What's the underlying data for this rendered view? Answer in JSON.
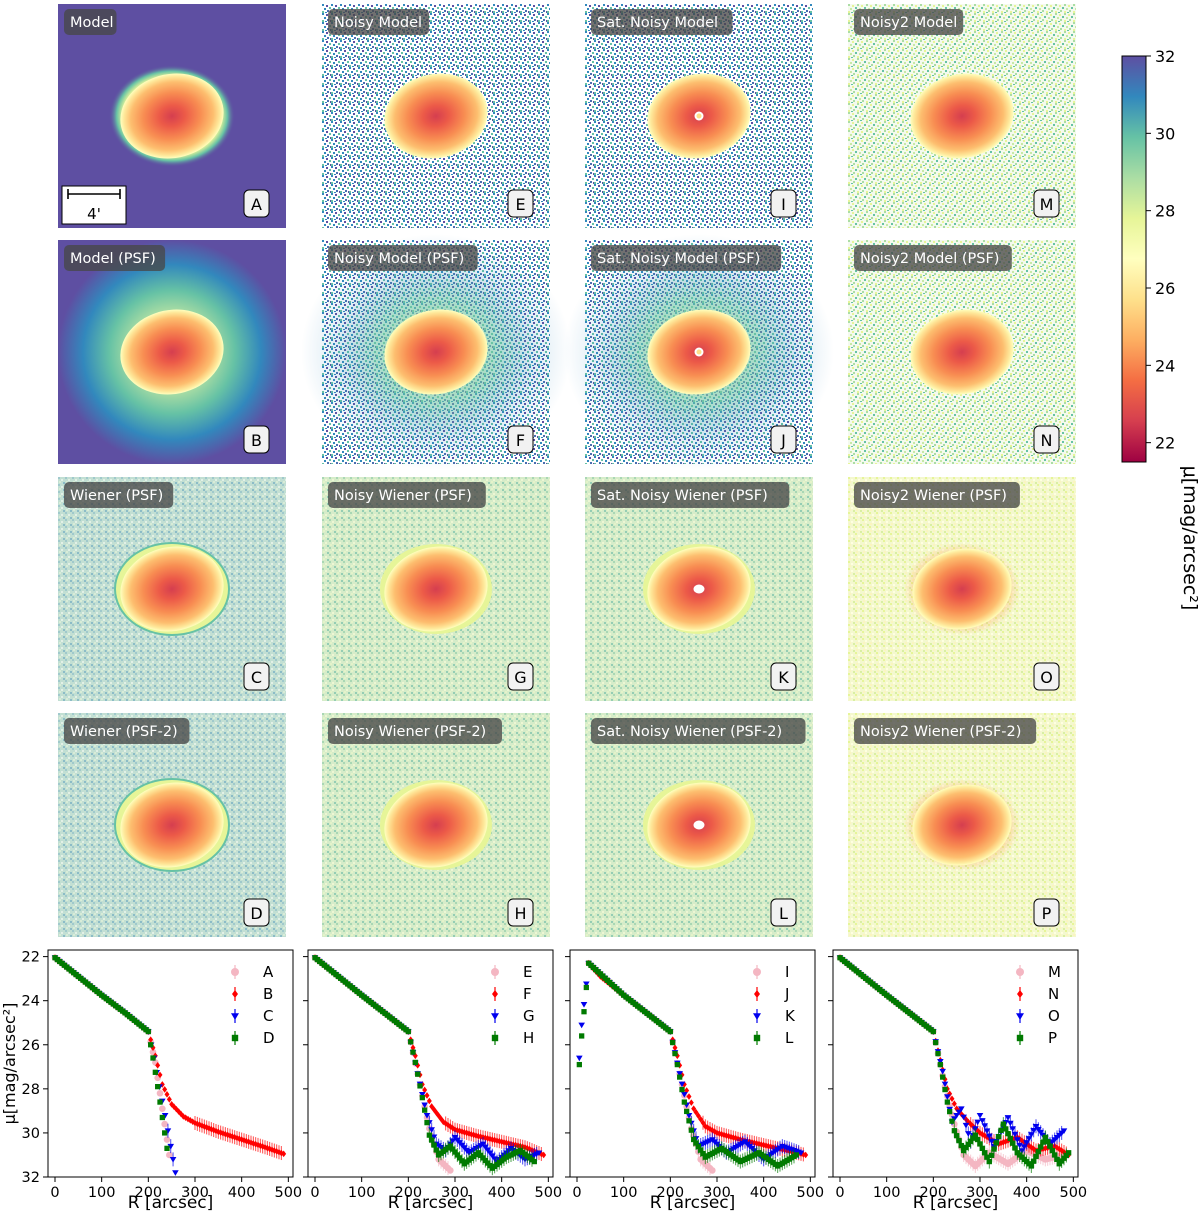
{
  "figure": {
    "scale_bar_label": "4'",
    "colorbar": {
      "label": "μ[mag/arcsec²]",
      "ticks": [
        "22",
        "24",
        "26",
        "28",
        "30",
        "32"
      ],
      "range": [
        21.5,
        32
      ],
      "colormap": "Spectral"
    }
  },
  "panels": [
    {
      "title": "Model",
      "letter": "A",
      "style": "model",
      "psf": false
    },
    {
      "title": "Noisy Model",
      "letter": "E",
      "style": "noisy",
      "psf": false
    },
    {
      "title": "Sat. Noisy Model",
      "letter": "I",
      "style": "satnoisy",
      "psf": false
    },
    {
      "title": "Noisy2 Model",
      "letter": "M",
      "style": "noisy2",
      "psf": false
    },
    {
      "title": "Model (PSF)",
      "letter": "B",
      "style": "modelpsf",
      "psf": true
    },
    {
      "title": "Noisy Model (PSF)",
      "letter": "F",
      "style": "noisy",
      "psf": true
    },
    {
      "title": "Sat. Noisy Model (PSF)",
      "letter": "J",
      "style": "satnoisy",
      "psf": true
    },
    {
      "title": "Noisy2 Model (PSF)",
      "letter": "N",
      "style": "noisy2",
      "psf": true
    },
    {
      "title": "Wiener (PSF)",
      "letter": "C",
      "style": "wiener",
      "psf": false
    },
    {
      "title": "Noisy Wiener (PSF)",
      "letter": "G",
      "style": "noisywiener",
      "psf": false
    },
    {
      "title": "Sat. Noisy Wiener (PSF)",
      "letter": "K",
      "style": "satwiener",
      "psf": false
    },
    {
      "title": "Noisy2 Wiener (PSF)",
      "letter": "O",
      "style": "noisy2wiener",
      "psf": false
    },
    {
      "title": "Wiener (PSF-2)",
      "letter": "D",
      "style": "wiener2",
      "psf": false
    },
    {
      "title": "Noisy Wiener (PSF-2)",
      "letter": "H",
      "style": "noisywiener",
      "psf": false
    },
    {
      "title": "Sat. Noisy Wiener (PSF-2)",
      "letter": "L",
      "style": "satwiener",
      "psf": false
    },
    {
      "title": "Noisy2 Wiener (PSF-2)",
      "letter": "P",
      "style": "noisy2wiener",
      "psf": false
    }
  ],
  "chart_data": [
    {
      "type": "scatter",
      "xlabel": "R [arcsec]",
      "ylabel": "μ[mag/arcsec²]",
      "xlim": [
        -15,
        510
      ],
      "ylim": [
        32,
        21.7
      ],
      "xticks": [
        "0",
        "100",
        "200",
        "300",
        "400",
        "500"
      ],
      "yticks": [
        "22",
        "24",
        "26",
        "28",
        "30",
        "32"
      ],
      "legend_position": "top-right",
      "series": [
        {
          "name": "A",
          "color": "#f4b6c2",
          "marker": "circle",
          "x": [
            0,
            50,
            100,
            150,
            200,
            215,
            225,
            235,
            245
          ],
          "y": [
            22.05,
            22.9,
            23.75,
            24.55,
            25.4,
            26.8,
            28.2,
            29.6,
            31.0
          ]
        },
        {
          "name": "B",
          "color": "#ff0000",
          "marker": "diamond",
          "x": [
            0,
            50,
            100,
            150,
            200,
            215,
            230,
            250,
            275,
            300,
            350,
            400,
            450,
            490
          ],
          "y": [
            22.05,
            22.9,
            23.75,
            24.55,
            25.4,
            26.5,
            27.8,
            28.7,
            29.25,
            29.55,
            29.95,
            30.3,
            30.65,
            30.95
          ]
        },
        {
          "name": "C",
          "color": "#0000ee",
          "marker": "tri-down",
          "x": [
            0,
            50,
            100,
            150,
            200,
            212,
            224,
            236,
            248,
            258
          ],
          "y": [
            22.05,
            22.9,
            23.75,
            24.55,
            25.4,
            26.6,
            27.9,
            29.2,
            30.6,
            31.8
          ]
        },
        {
          "name": "D",
          "color": "#007a00",
          "marker": "square",
          "x": [
            0,
            50,
            100,
            150,
            200,
            210,
            220,
            230,
            240
          ],
          "y": [
            22.05,
            22.9,
            23.75,
            24.55,
            25.4,
            26.6,
            27.9,
            29.3,
            30.7
          ]
        }
      ]
    },
    {
      "type": "scatter",
      "xlabel": "R [arcsec]",
      "xlim": [
        -15,
        510
      ],
      "ylim": [
        32,
        21.7
      ],
      "xticks": [
        "0",
        "100",
        "200",
        "300",
        "400",
        "500"
      ],
      "legend_position": "top-right",
      "series": [
        {
          "name": "E",
          "color": "#f4b6c2",
          "marker": "circle",
          "x": [
            0,
            100,
            200,
            225,
            245,
            265,
            290
          ],
          "y": [
            22.05,
            23.75,
            25.4,
            27.8,
            29.8,
            31.2,
            31.7
          ]
        },
        {
          "name": "F",
          "color": "#ff0000",
          "marker": "diamond",
          "x": [
            0,
            50,
            100,
            150,
            200,
            215,
            230,
            250,
            275,
            300,
            350,
            400,
            450,
            490
          ],
          "y": [
            22.05,
            22.9,
            23.75,
            24.55,
            25.4,
            26.5,
            27.8,
            28.8,
            29.5,
            29.85,
            30.15,
            30.4,
            30.65,
            31.0
          ]
        },
        {
          "name": "G",
          "color": "#0000ee",
          "marker": "tri-down",
          "x": [
            0,
            100,
            200,
            220,
            240,
            260,
            280,
            300,
            330,
            360,
            390,
            420,
            450,
            480
          ],
          "y": [
            22.05,
            23.75,
            25.4,
            27.3,
            29.2,
            30.5,
            30.8,
            30.2,
            30.9,
            30.5,
            31.3,
            30.7,
            31.2,
            30.9
          ]
        },
        {
          "name": "H",
          "color": "#007a00",
          "marker": "square",
          "x": [
            0,
            100,
            200,
            215,
            230,
            245,
            265,
            290,
            320,
            350,
            380,
            410,
            440,
            470
          ],
          "y": [
            22.05,
            23.75,
            25.4,
            26.8,
            28.4,
            30.1,
            31.0,
            30.6,
            31.4,
            30.9,
            31.6,
            31.1,
            30.8,
            31.3
          ]
        }
      ]
    },
    {
      "type": "scatter",
      "xlabel": "R [arcsec]",
      "xlim": [
        -15,
        510
      ],
      "ylim": [
        32,
        21.7
      ],
      "xticks": [
        "0",
        "100",
        "200",
        "300",
        "400",
        "500"
      ],
      "legend_position": "top-right",
      "series": [
        {
          "name": "I",
          "color": "#f4b6c2",
          "marker": "circle",
          "x": [
            25,
            100,
            200,
            225,
            245,
            265,
            290
          ],
          "y": [
            22.3,
            23.75,
            25.4,
            27.8,
            29.8,
            31.2,
            31.7
          ]
        },
        {
          "name": "J",
          "color": "#ff0000",
          "marker": "diamond",
          "x": [
            25,
            50,
            100,
            150,
            200,
            215,
            230,
            250,
            275,
            300,
            350,
            400,
            450,
            490
          ],
          "y": [
            22.3,
            22.9,
            23.75,
            24.55,
            25.4,
            26.5,
            27.8,
            28.9,
            29.7,
            30.0,
            30.3,
            30.55,
            30.8,
            31.0
          ]
        },
        {
          "name": "K",
          "color": "#0000ee",
          "marker": "tri-down",
          "x": [
            5,
            10,
            25,
            100,
            200,
            220,
            240,
            260,
            290,
            320,
            360,
            400,
            440,
            480
          ],
          "y": [
            26.6,
            25.1,
            22.3,
            23.75,
            25.4,
            27.3,
            29.2,
            30.6,
            30.3,
            30.9,
            30.4,
            31.2,
            30.6,
            30.9
          ]
        },
        {
          "name": "L",
          "color": "#007a00",
          "marker": "square",
          "x": [
            5,
            10,
            25,
            100,
            200,
            215,
            230,
            250,
            275,
            310,
            350,
            390,
            430,
            470
          ],
          "y": [
            26.9,
            25.6,
            22.3,
            23.75,
            25.4,
            26.9,
            28.6,
            30.3,
            31.1,
            30.7,
            31.3,
            30.9,
            31.5,
            31.0
          ]
        }
      ]
    },
    {
      "type": "scatter",
      "xlabel": "R [arcsec]",
      "xlim": [
        -15,
        510
      ],
      "ylim": [
        32,
        21.7
      ],
      "xticks": [
        "0",
        "100",
        "200",
        "300",
        "400",
        "500"
      ],
      "legend_position": "top-right",
      "series": [
        {
          "name": "M",
          "color": "#f4b6c2",
          "marker": "circle",
          "x": [
            0,
            100,
            200,
            225,
            245,
            265,
            290,
            320,
            360,
            400,
            440,
            480
          ],
          "y": [
            22.05,
            23.75,
            25.4,
            27.9,
            29.6,
            31.0,
            31.5,
            30.9,
            31.4,
            30.8,
            31.2,
            31.0
          ]
        },
        {
          "name": "N",
          "color": "#ff0000",
          "marker": "diamond",
          "x": [
            0,
            50,
            100,
            150,
            200,
            215,
            230,
            250,
            275,
            300,
            340,
            380,
            420,
            460,
            490
          ],
          "y": [
            22.05,
            22.9,
            23.75,
            24.55,
            25.4,
            26.7,
            28.0,
            28.9,
            29.5,
            30.0,
            30.5,
            30.2,
            30.8,
            30.6,
            31.0
          ]
        },
        {
          "name": "O",
          "color": "#0000ee",
          "marker": "tri-down",
          "x": [
            0,
            100,
            200,
            220,
            240,
            260,
            280,
            300,
            330,
            360,
            390,
            420,
            450,
            480
          ],
          "y": [
            22.05,
            23.75,
            25.4,
            27.2,
            29.5,
            28.9,
            30.4,
            29.2,
            30.6,
            29.3,
            30.8,
            29.7,
            30.5,
            29.9
          ]
        },
        {
          "name": "P",
          "color": "#007a00",
          "marker": "square",
          "x": [
            0,
            100,
            200,
            215,
            230,
            245,
            265,
            290,
            320,
            350,
            380,
            410,
            440,
            470,
            490
          ],
          "y": [
            22.05,
            23.75,
            25.4,
            26.9,
            28.6,
            29.9,
            30.8,
            30.1,
            31.3,
            29.6,
            30.9,
            31.5,
            30.2,
            31.4,
            30.9
          ]
        }
      ]
    }
  ]
}
